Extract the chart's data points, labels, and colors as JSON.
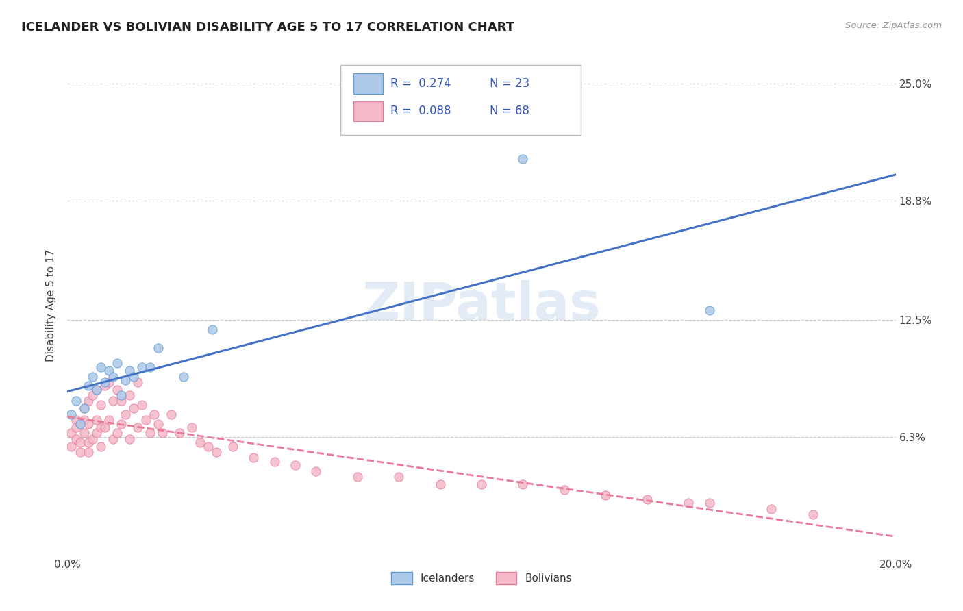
{
  "title": "ICELANDER VS BOLIVIAN DISABILITY AGE 5 TO 17 CORRELATION CHART",
  "source_text": "Source: ZipAtlas.com",
  "ylabel": "Disability Age 5 to 17",
  "xlim": [
    0.0,
    0.2
  ],
  "ylim": [
    0.0,
    0.265
  ],
  "xtick_positions": [
    0.0,
    0.2
  ],
  "xtick_labels": [
    "0.0%",
    "20.0%"
  ],
  "ytick_values": [
    0.063,
    0.125,
    0.188,
    0.25
  ],
  "ytick_labels": [
    "6.3%",
    "12.5%",
    "18.8%",
    "25.0%"
  ],
  "icelander_fill": "#adc8e8",
  "icelander_edge": "#5b9bd5",
  "bolivian_fill": "#f4b8c8",
  "bolivian_edge": "#e87a9a",
  "icelander_line_color": "#4472c4",
  "bolivian_line_color": "#e87a9a",
  "background_color": "#ffffff",
  "grid_color": "#c8c8c8",
  "watermark_color": "#d0dff0",
  "icelander_x": [
    0.001,
    0.002,
    0.003,
    0.004,
    0.005,
    0.006,
    0.007,
    0.008,
    0.009,
    0.01,
    0.011,
    0.012,
    0.013,
    0.014,
    0.015,
    0.016,
    0.018,
    0.02,
    0.022,
    0.028,
    0.035,
    0.11,
    0.155
  ],
  "icelander_y": [
    0.075,
    0.082,
    0.07,
    0.078,
    0.09,
    0.095,
    0.088,
    0.1,
    0.092,
    0.098,
    0.095,
    0.102,
    0.085,
    0.093,
    0.098,
    0.095,
    0.1,
    0.1,
    0.11,
    0.095,
    0.12,
    0.21,
    0.13
  ],
  "bolivian_x": [
    0.001,
    0.001,
    0.002,
    0.002,
    0.002,
    0.003,
    0.003,
    0.003,
    0.004,
    0.004,
    0.004,
    0.005,
    0.005,
    0.005,
    0.005,
    0.006,
    0.006,
    0.007,
    0.007,
    0.007,
    0.008,
    0.008,
    0.008,
    0.009,
    0.009,
    0.01,
    0.01,
    0.011,
    0.011,
    0.012,
    0.012,
    0.013,
    0.013,
    0.014,
    0.015,
    0.015,
    0.016,
    0.017,
    0.017,
    0.018,
    0.019,
    0.02,
    0.021,
    0.022,
    0.023,
    0.025,
    0.027,
    0.03,
    0.032,
    0.034,
    0.036,
    0.04,
    0.045,
    0.05,
    0.055,
    0.06,
    0.07,
    0.08,
    0.09,
    0.1,
    0.11,
    0.12,
    0.13,
    0.14,
    0.15,
    0.155,
    0.17,
    0.18
  ],
  "bolivian_y": [
    0.065,
    0.058,
    0.072,
    0.062,
    0.068,
    0.07,
    0.06,
    0.055,
    0.078,
    0.065,
    0.072,
    0.082,
    0.07,
    0.06,
    0.055,
    0.085,
    0.062,
    0.088,
    0.072,
    0.065,
    0.08,
    0.068,
    0.058,
    0.09,
    0.068,
    0.092,
    0.072,
    0.082,
    0.062,
    0.088,
    0.065,
    0.082,
    0.07,
    0.075,
    0.085,
    0.062,
    0.078,
    0.092,
    0.068,
    0.08,
    0.072,
    0.065,
    0.075,
    0.07,
    0.065,
    0.075,
    0.065,
    0.068,
    0.06,
    0.058,
    0.055,
    0.058,
    0.052,
    0.05,
    0.048,
    0.045,
    0.042,
    0.042,
    0.038,
    0.038,
    0.038,
    0.035,
    0.032,
    0.03,
    0.028,
    0.028,
    0.025,
    0.022
  ]
}
